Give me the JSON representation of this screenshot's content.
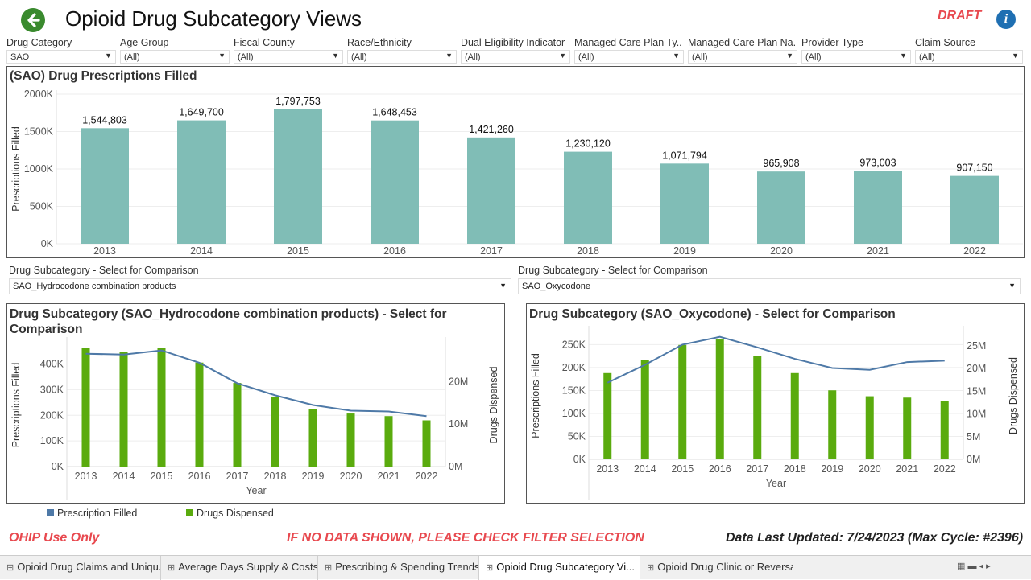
{
  "header": {
    "title": "Opioid Drug Subcategory Views",
    "draft": "DRAFT",
    "info": "i"
  },
  "filters": [
    {
      "label": "Drug Category",
      "value": "SAO"
    },
    {
      "label": "Age Group",
      "value": "(All)"
    },
    {
      "label": "Fiscal County",
      "value": "(All)"
    },
    {
      "label": "Race/Ethnicity",
      "value": "(All)"
    },
    {
      "label": "Dual Eligibility Indicator",
      "value": "(All)"
    },
    {
      "label": "Managed Care Plan Ty..",
      "value": "(All)"
    },
    {
      "label": "Managed Care Plan Na..",
      "value": "(All)"
    },
    {
      "label": "Provider Type",
      "value": "(All)"
    },
    {
      "label": "Claim Source",
      "value": "(All)"
    }
  ],
  "comparison": {
    "left": {
      "label": "Drug Subcategory - Select for Comparison",
      "value": "SAO_Hydrocodone combination products"
    },
    "right": {
      "label": "Drug Subcategory - Select for Comparison",
      "value": "SAO_Oxycodone"
    }
  },
  "legend": {
    "prescription": "Prescription Filled",
    "dispensed": "Drugs Dispensed"
  },
  "footer": {
    "left": "OHIP Use Only",
    "center": "IF NO DATA SHOWN, PLEASE CHECK FILTER SELECTION",
    "right": "Data Last Updated: 7/24/2023 (Max Cycle: #2396)"
  },
  "tabs": [
    {
      "label": "Opioid Drug Claims and Uniqu...",
      "active": false
    },
    {
      "label": "Average Days Supply & Costs",
      "active": false
    },
    {
      "label": "Prescribing & Spending Trends",
      "active": false
    },
    {
      "label": "Opioid Drug Subcategory Vi...",
      "active": true
    },
    {
      "label": "Opioid Drug Clinic or Reversal",
      "active": false
    }
  ],
  "colors": {
    "bar_main": "#80bdb6",
    "bar_green": "#5aab0e",
    "line_blue": "#4e79a7",
    "accent_red": "#e8494f"
  },
  "chart_data": [
    {
      "type": "bar",
      "title": "(SAO) Drug Prescriptions Filled",
      "ylabel": "Prescriptions Filled",
      "categories": [
        "2013",
        "2014",
        "2015",
        "2016",
        "2017",
        "2018",
        "2019",
        "2020",
        "2021",
        "2022"
      ],
      "values": [
        1544803,
        1649700,
        1797753,
        1648453,
        1421260,
        1230120,
        1071794,
        965908,
        973003,
        907150
      ],
      "data_labels": [
        "1,544,803",
        "1,649,700",
        "1,797,753",
        "1,648,453",
        "1,421,260",
        "1,230,120",
        "1,071,794",
        "965,908",
        "973,003",
        "907,150"
      ],
      "yticks": [
        0,
        500000,
        1000000,
        1500000,
        2000000
      ],
      "ytick_labels": [
        "0K",
        "500K",
        "1000K",
        "1500K",
        "2000K"
      ],
      "ylim": [
        0,
        2000000
      ]
    },
    {
      "type": "bar+line",
      "title": "Drug Subcategory (SAO_Hydrocodone combination products) - Select for Comparison",
      "xlabel": "Year",
      "ylabel": "Prescriptions Filled",
      "y2label": "Drugs Dispensed",
      "categories": [
        "2013",
        "2014",
        "2015",
        "2016",
        "2017",
        "2018",
        "2019",
        "2020",
        "2021",
        "2022"
      ],
      "series": [
        {
          "name": "Prescription Filled",
          "kind": "line",
          "axis": "left",
          "values": [
            440000,
            437000,
            453000,
            405000,
            325000,
            278000,
            240000,
            218000,
            215000,
            197000
          ]
        },
        {
          "name": "Drugs Dispensed",
          "kind": "bar",
          "axis": "right",
          "values": [
            28000000,
            27000000,
            28000000,
            24500000,
            19700000,
            16500000,
            13600000,
            12500000,
            11900000,
            10900000
          ]
        }
      ],
      "yticks": [
        0,
        100000,
        200000,
        300000,
        400000
      ],
      "ytick_labels": [
        "0K",
        "100K",
        "200K",
        "300K",
        "400K"
      ],
      "ylim": [
        0,
        480000
      ],
      "y2ticks": [
        0,
        10000000,
        20000000
      ],
      "y2tick_labels": [
        "0M",
        "10M",
        "20M"
      ],
      "y2lim": [
        0,
        29000000
      ]
    },
    {
      "type": "bar+line",
      "title": "Drug Subcategory (SAO_Oxycodone) - Select for Comparison",
      "xlabel": "Year",
      "ylabel": "Prescriptions Filled",
      "y2label": "Drugs Dispensed",
      "categories": [
        "2013",
        "2014",
        "2015",
        "2016",
        "2017",
        "2018",
        "2019",
        "2020",
        "2021",
        "2022"
      ],
      "series": [
        {
          "name": "Prescription Filled",
          "kind": "line",
          "axis": "left",
          "values": [
            167000,
            206000,
            250000,
            267000,
            244000,
            219000,
            199000,
            195000,
            212000,
            215000
          ]
        },
        {
          "name": "Drugs Dispensed",
          "kind": "bar",
          "axis": "right",
          "values": [
            19000000,
            21900000,
            25200000,
            26400000,
            22800000,
            19000000,
            15200000,
            13900000,
            13600000,
            12900000
          ]
        }
      ],
      "yticks": [
        0,
        50000,
        100000,
        150000,
        200000,
        250000
      ],
      "ytick_labels": [
        "0K",
        "50K",
        "100K",
        "150K",
        "200K",
        "250K"
      ],
      "ylim": [
        0,
        277000
      ],
      "y2ticks": [
        0,
        5000000,
        10000000,
        15000000,
        20000000,
        25000000
      ],
      "y2tick_labels": [
        "0M",
        "5M",
        "10M",
        "15M",
        "20M",
        "25M"
      ],
      "y2lim": [
        0,
        28000000
      ]
    }
  ]
}
